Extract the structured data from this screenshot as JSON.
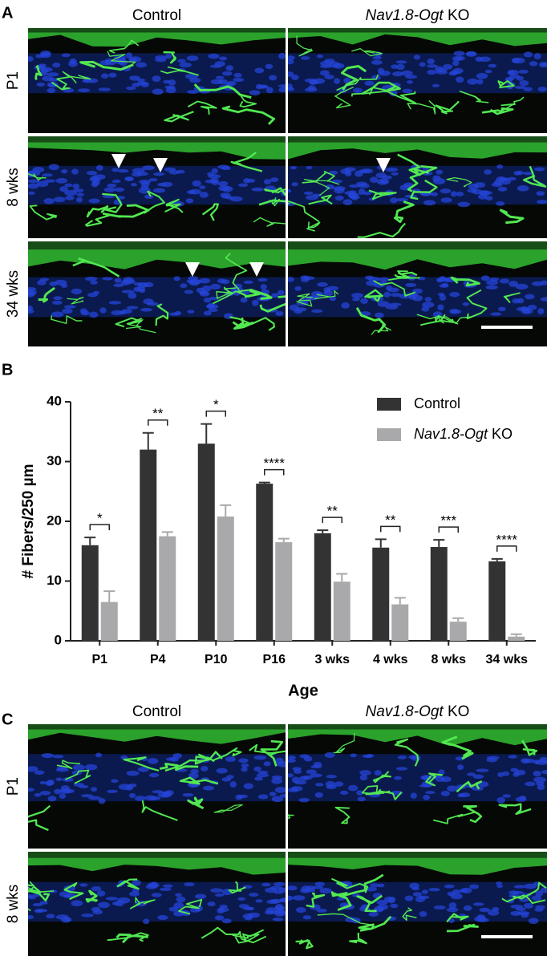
{
  "panel_a": {
    "label": "A",
    "columns": [
      "Control",
      "Nav1.8-Ogt KO"
    ],
    "rows": [
      "P1",
      "8 wks",
      "34 wks"
    ]
  },
  "chart_data": {
    "type": "bar",
    "panel_label": "B",
    "x_label": "Age",
    "y_label": "# Fibers/250 µm",
    "categories": [
      "P1",
      "P4",
      "P10",
      "P16",
      "3 wks",
      "4 wks",
      "8 wks",
      "34 wks"
    ],
    "series": [
      {
        "name": "Control",
        "color": "#333333",
        "values": [
          16,
          32,
          33,
          26.3,
          18,
          15.6,
          15.7,
          13.3
        ],
        "errors": [
          1.3,
          2.8,
          3.3,
          0.2,
          0.5,
          1.4,
          1.2,
          0.4
        ]
      },
      {
        "name": "Nav1.8-Ogt KO",
        "color": "#a9a9ab",
        "values": [
          6.5,
          17.5,
          20.8,
          16.5,
          9.9,
          6.1,
          3.2,
          0.7
        ],
        "errors": [
          1.8,
          0.7,
          1.9,
          0.6,
          1.3,
          1.1,
          0.6,
          0.4
        ]
      }
    ],
    "significance": [
      "*",
      "**",
      "*",
      "****",
      "**",
      "**",
      "***",
      "****"
    ],
    "ylim": [
      0,
      40
    ],
    "yticks": [
      0,
      10,
      20,
      30,
      40
    ],
    "legend": "top-right"
  },
  "panel_c": {
    "label": "C",
    "columns": [
      "Control",
      "Nav1.8-Ogt KO"
    ],
    "rows": [
      "P1",
      "8 wks"
    ]
  }
}
